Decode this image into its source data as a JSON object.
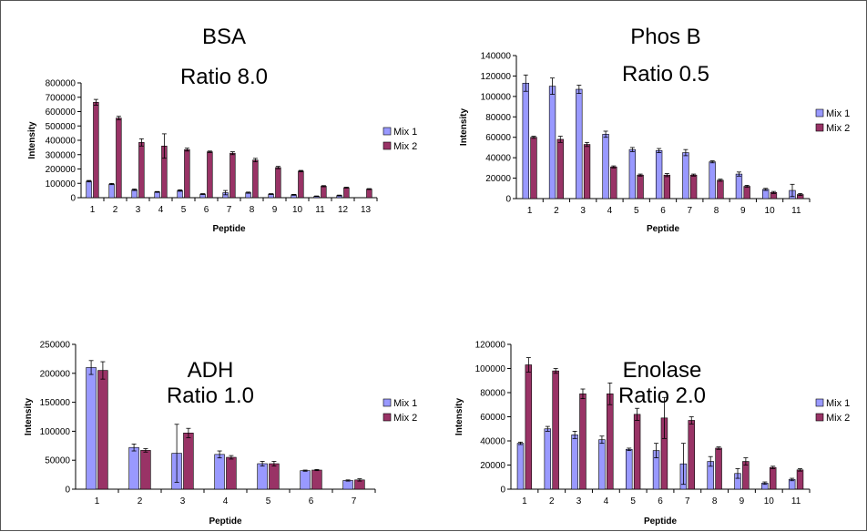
{
  "colors": {
    "mix1": "#9999ff",
    "mix2": "#993366",
    "axis": "#000000"
  },
  "chart_data": [
    {
      "type": "bar",
      "title": "BSA",
      "subtitle": "Ratio 8.0",
      "xlabel": "Peptide",
      "ylabel": "Intensity",
      "ylim": [
        0,
        800000
      ],
      "yticks": [
        0,
        100000,
        200000,
        300000,
        400000,
        500000,
        600000,
        700000,
        800000
      ],
      "categories": [
        "1",
        "2",
        "3",
        "4",
        "5",
        "6",
        "7",
        "8",
        "9",
        "10",
        "11",
        "12",
        "13"
      ],
      "legend_position": "right",
      "series": [
        {
          "name": "Mix 1",
          "values": [
            115000,
            95000,
            55000,
            40000,
            50000,
            25000,
            35000,
            35000,
            25000,
            20000,
            10000,
            15000,
            0
          ],
          "errors": [
            5000,
            4000,
            5000,
            3000,
            5000,
            3000,
            15000,
            4000,
            3000,
            3000,
            2000,
            3000,
            0
          ]
        },
        {
          "name": "Mix 2",
          "values": [
            665000,
            555000,
            385000,
            360000,
            335000,
            320000,
            310000,
            262000,
            210000,
            185000,
            80000,
            70000,
            60000
          ],
          "errors": [
            20000,
            12000,
            25000,
            85000,
            10000,
            5000,
            10000,
            12000,
            8000,
            5000,
            4000,
            3000,
            3000
          ]
        }
      ]
    },
    {
      "type": "bar",
      "title": "Phos B",
      "subtitle": "Ratio 0.5",
      "xlabel": "Peptide",
      "ylabel": "Intensity",
      "ylim": [
        0,
        140000
      ],
      "yticks": [
        0,
        20000,
        40000,
        60000,
        80000,
        100000,
        120000,
        140000
      ],
      "categories": [
        "1",
        "2",
        "3",
        "4",
        "5",
        "6",
        "7",
        "8",
        "9",
        "10",
        "11"
      ],
      "legend_position": "right",
      "series": [
        {
          "name": "Mix 1",
          "values": [
            113000,
            110000,
            107000,
            63000,
            48000,
            47000,
            45000,
            36000,
            24000,
            9000,
            8000
          ],
          "errors": [
            8000,
            8000,
            4000,
            3000,
            2000,
            2000,
            3000,
            1000,
            2000,
            1000,
            6000
          ]
        },
        {
          "name": "Mix 2",
          "values": [
            60000,
            58000,
            53000,
            31000,
            23000,
            23000,
            23000,
            18000,
            12000,
            6000,
            4000
          ],
          "errors": [
            1000,
            3000,
            2000,
            1000,
            1000,
            1500,
            1000,
            1000,
            1000,
            1000,
            1000
          ]
        }
      ]
    },
    {
      "type": "bar",
      "title": "ADH",
      "subtitle": "Ratio 1.0",
      "xlabel": "Peptide",
      "ylabel": "Intensity",
      "ylim": [
        0,
        250000
      ],
      "yticks": [
        0,
        50000,
        100000,
        150000,
        200000,
        250000
      ],
      "categories": [
        "1",
        "2",
        "3",
        "4",
        "5",
        "6",
        "7"
      ],
      "legend_position": "right",
      "series": [
        {
          "name": "Mix 1",
          "values": [
            210000,
            72000,
            62000,
            60000,
            44000,
            32000,
            15000
          ],
          "errors": [
            12000,
            6000,
            50000,
            6000,
            4000,
            1000,
            1000
          ]
        },
        {
          "name": "Mix 2",
          "values": [
            205000,
            67000,
            97000,
            55000,
            44000,
            33000,
            16000
          ],
          "errors": [
            15000,
            3000,
            8000,
            3000,
            4000,
            1000,
            2000
          ]
        }
      ]
    },
    {
      "type": "bar",
      "title": "Enolase",
      "subtitle": "Ratio 2.0",
      "xlabel": "Peptide",
      "ylabel": "Intensity",
      "ylim": [
        0,
        120000
      ],
      "yticks": [
        0,
        20000,
        40000,
        60000,
        80000,
        100000,
        120000
      ],
      "categories": [
        "1",
        "2",
        "3",
        "4",
        "5",
        "6",
        "7",
        "8",
        "9",
        "10",
        "11"
      ],
      "legend_position": "right",
      "series": [
        {
          "name": "Mix 1",
          "values": [
            38000,
            50000,
            45000,
            41000,
            33000,
            32000,
            21000,
            23000,
            13000,
            5000,
            8000
          ],
          "errors": [
            1000,
            2000,
            3000,
            3000,
            1000,
            6000,
            17000,
            4000,
            4000,
            1000,
            1000
          ]
        },
        {
          "name": "Mix 2",
          "values": [
            103000,
            98000,
            79000,
            79000,
            62000,
            59000,
            57000,
            34000,
            23000,
            18000,
            16000
          ],
          "errors": [
            6000,
            2000,
            4000,
            9000,
            5000,
            17000,
            3000,
            1000,
            3000,
            1000,
            1000
          ]
        }
      ]
    }
  ]
}
